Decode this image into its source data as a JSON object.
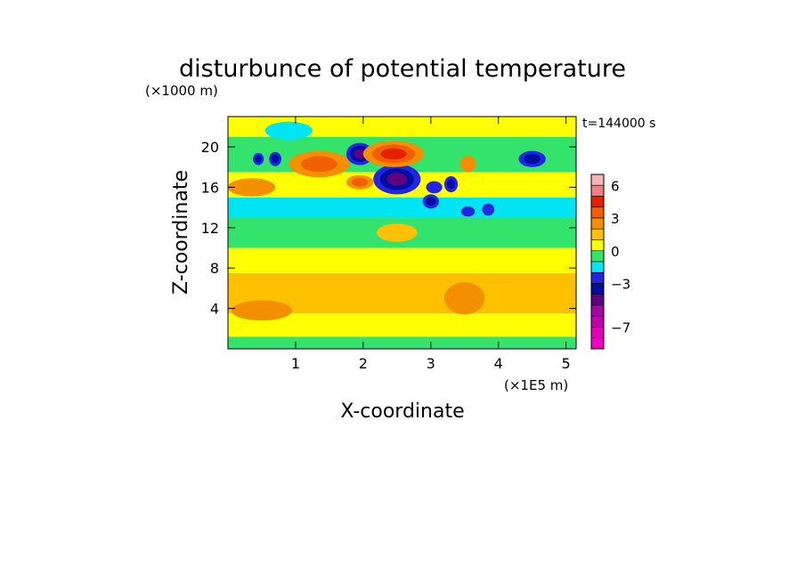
{
  "chart_data": {
    "type": "heatmap",
    "title": "disturbunce of potential temperature",
    "xlabel": "X-coordinate",
    "ylabel": "Z-coordinate",
    "x_unit_label": "(×1E5 m)",
    "y_unit_label": "(×1000 m)",
    "time_label": "t=144000 s",
    "xlim": [
      0,
      5.15
    ],
    "ylim": [
      0,
      23
    ],
    "x_ticks": [
      "1",
      "2",
      "3",
      "4",
      "5"
    ],
    "x_tick_values": [
      1,
      2,
      3,
      4,
      5
    ],
    "y_ticks": [
      "4",
      "8",
      "12",
      "16",
      "20"
    ],
    "y_tick_values": [
      4,
      8,
      12,
      16,
      20
    ],
    "colorbar": {
      "tick_labels": [
        "6",
        "3",
        "0",
        "−3",
        "−7"
      ],
      "tick_values": [
        6,
        3,
        0,
        -3,
        -7
      ],
      "levels": [
        {
          "from": 6,
          "to": 7,
          "color": "#f4b4b4"
        },
        {
          "from": 5,
          "to": 6,
          "color": "#f08080"
        },
        {
          "from": 4,
          "to": 5,
          "color": "#e82000"
        },
        {
          "from": 3,
          "to": 4,
          "color": "#f06000"
        },
        {
          "from": 2,
          "to": 3,
          "color": "#f49000"
        },
        {
          "from": 1,
          "to": 2,
          "color": "#ffc000"
        },
        {
          "from": 0,
          "to": 1,
          "color": "#ffff00"
        },
        {
          "from": -1,
          "to": 0,
          "color": "#33e36b"
        },
        {
          "from": -2,
          "to": -1,
          "color": "#00e4f4"
        },
        {
          "from": -3,
          "to": -2,
          "color": "#2424e6"
        },
        {
          "from": -4,
          "to": -3,
          "color": "#000ea0"
        },
        {
          "from": -5,
          "to": -4,
          "color": "#600080"
        },
        {
          "from": -6,
          "to": -5,
          "color": "#9f0aa5"
        },
        {
          "from": -7,
          "to": -6,
          "color": "#c000b0"
        },
        {
          "from": -8,
          "to": -7,
          "color": "#e200b8"
        },
        {
          "from": -9,
          "to": -8,
          "color": "#f000c0"
        }
      ]
    },
    "approx_bands": [
      {
        "z_from": 0,
        "z_to": 1.2,
        "value": -0.5
      },
      {
        "z_from": 1.2,
        "z_to": 3.5,
        "value": 0.5
      },
      {
        "z_from": 3.5,
        "z_to": 7.5,
        "value": 1.5
      },
      {
        "z_from": 7.5,
        "z_to": 10,
        "value": 0.5
      },
      {
        "z_from": 10,
        "z_to": 13,
        "value": -0.5
      },
      {
        "z_from": 13,
        "z_to": 15,
        "value": -1.5
      },
      {
        "z_from": 15,
        "z_to": 17.5,
        "value": 0.5
      },
      {
        "z_from": 17.5,
        "z_to": 21,
        "value": -0.5
      },
      {
        "z_from": 21,
        "z_to": 23,
        "value": 0.5
      }
    ],
    "features": [
      {
        "x": 2.5,
        "z": 16.8,
        "rx": 0.35,
        "rz": 1.5,
        "levels": [
          -2,
          -3,
          -4
        ]
      },
      {
        "x": 1.95,
        "z": 19.3,
        "rx": 0.2,
        "rz": 1.1,
        "levels": [
          -2,
          -3,
          -4
        ]
      },
      {
        "x": 4.5,
        "z": 18.8,
        "rx": 0.2,
        "rz": 0.8,
        "levels": [
          -2,
          -3
        ]
      },
      {
        "x": 0.7,
        "z": 18.8,
        "rx": 0.09,
        "rz": 0.7,
        "levels": [
          -2,
          -3
        ]
      },
      {
        "x": 0.45,
        "z": 18.8,
        "rx": 0.08,
        "rz": 0.6,
        "levels": [
          -2,
          -3
        ]
      },
      {
        "x": 3.3,
        "z": 16.3,
        "rx": 0.1,
        "rz": 0.8,
        "levels": [
          -2,
          -3
        ]
      },
      {
        "x": 3.05,
        "z": 16.0,
        "rx": 0.12,
        "rz": 0.6,
        "levels": [
          -2
        ]
      },
      {
        "x": 3.0,
        "z": 14.6,
        "rx": 0.12,
        "rz": 0.7,
        "levels": [
          -2,
          -3
        ]
      },
      {
        "x": 3.85,
        "z": 13.8,
        "rx": 0.09,
        "rz": 0.6,
        "levels": [
          -2
        ]
      },
      {
        "x": 3.55,
        "z": 13.6,
        "rx": 0.1,
        "rz": 0.5,
        "levels": [
          -2
        ]
      },
      {
        "x": 2.45,
        "z": 19.3,
        "rx": 0.45,
        "rz": 1.3,
        "levels": [
          2,
          3,
          4
        ]
      },
      {
        "x": 1.35,
        "z": 18.3,
        "rx": 0.45,
        "rz": 1.3,
        "levels": [
          2,
          3
        ]
      },
      {
        "x": 1.95,
        "z": 16.5,
        "rx": 0.2,
        "rz": 0.7,
        "levels": [
          2,
          3
        ]
      },
      {
        "x": 3.55,
        "z": 18.3,
        "rx": 0.12,
        "rz": 0.8,
        "levels": [
          2
        ]
      },
      {
        "x": 0.35,
        "z": 16.0,
        "rx": 0.35,
        "rz": 0.9,
        "levels": [
          2
        ]
      },
      {
        "x": 0.5,
        "z": 3.8,
        "rx": 0.45,
        "rz": 1.0,
        "levels": [
          2
        ]
      },
      {
        "x": 3.5,
        "z": 5.0,
        "rx": 0.3,
        "rz": 1.6,
        "levels": [
          2
        ]
      },
      {
        "x": 0.9,
        "z": 21.6,
        "rx": 0.35,
        "rz": 0.9,
        "levels": [
          -1
        ]
      },
      {
        "x": 2.5,
        "z": 11.5,
        "rx": 0.3,
        "rz": 0.9,
        "levels": [
          1
        ]
      }
    ]
  }
}
